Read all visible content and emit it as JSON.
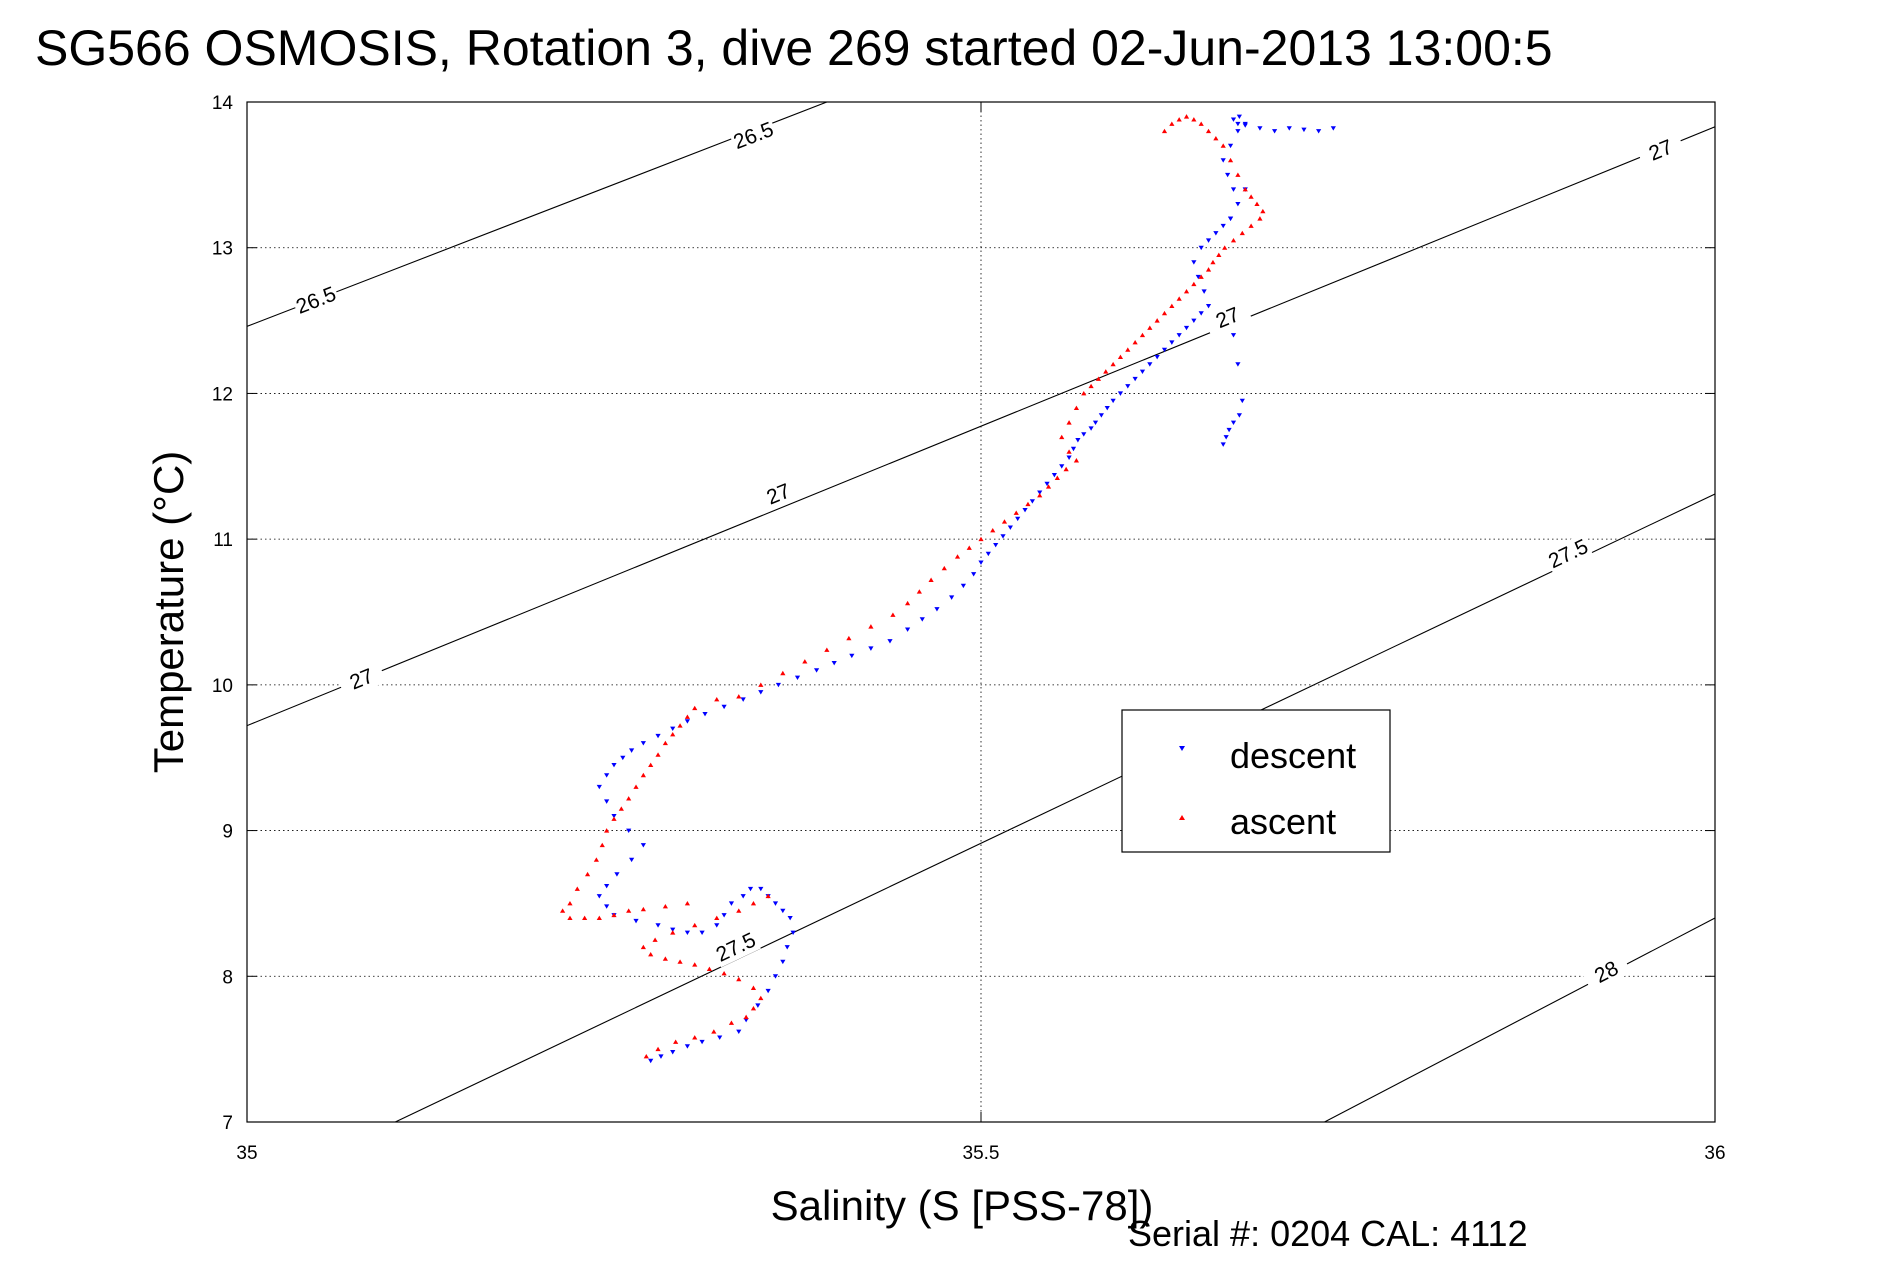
{
  "chart_data": {
    "type": "scatter",
    "title": "SG566 OSMOSIS, Rotation 3, dive 269 started 02-Jun-2013 13:00:5",
    "xlabel": "Salinity (S [PSS-78])",
    "ylabel": "Temperature (°C)",
    "xlim": [
      35,
      36
    ],
    "ylim": [
      7,
      14
    ],
    "x_ticks": [
      {
        "value": 35,
        "label": "35"
      },
      {
        "value": 35.5,
        "label": "35.5"
      },
      {
        "value": 36,
        "label": "36"
      }
    ],
    "y_ticks": [
      {
        "value": 7,
        "label": "7"
      },
      {
        "value": 8,
        "label": "8"
      },
      {
        "value": 9,
        "label": "9"
      },
      {
        "value": 10,
        "label": "10"
      },
      {
        "value": 11,
        "label": "11"
      },
      {
        "value": 12,
        "label": "12"
      },
      {
        "value": 13,
        "label": "13"
      },
      {
        "value": 14,
        "label": "14"
      }
    ],
    "grid": true,
    "legend": {
      "placement": "center-right"
    },
    "colors": {
      "descent": "#0000ff",
      "ascent": "#ff0000",
      "contour": "#000000"
    },
    "density_contours": [
      {
        "label": "26.5",
        "points": [
          [
            35,
            12.46
          ],
          [
            35.395,
            14
          ]
        ],
        "label_positions": [
          [
            35.047,
            12.64
          ],
          [
            35.345,
            13.77
          ]
        ]
      },
      {
        "label": "27",
        "points": [
          [
            35,
            9.72
          ],
          [
            36,
            13.83
          ]
        ],
        "label_positions": [
          [
            35.078,
            10.04
          ],
          [
            35.362,
            11.31
          ],
          [
            35.668,
            12.52
          ],
          [
            35.963,
            13.67
          ]
        ]
      },
      {
        "label": "27.5",
        "points": [
          [
            35.101,
            7
          ],
          [
            36,
            11.31
          ]
        ],
        "label_positions": [
          [
            35.333,
            8.2
          ],
          [
            35.9,
            10.9
          ]
        ]
      },
      {
        "label": "28",
        "points": [
          [
            35.734,
            7
          ],
          [
            36,
            8.4
          ]
        ],
        "label_positions": [
          [
            35.926,
            8.03
          ]
        ]
      }
    ],
    "series": [
      {
        "name": "descent",
        "marker": "triangle-down",
        "x": [
          35.275,
          35.282,
          35.29,
          35.3,
          35.31,
          35.322,
          35.335,
          35.34,
          35.348,
          35.355,
          35.36,
          35.365,
          35.368,
          35.372,
          35.37,
          35.365,
          35.36,
          35.355,
          35.35,
          35.343,
          35.338,
          35.33,
          35.325,
          35.32,
          35.31,
          35.3,
          35.29,
          35.28,
          35.265,
          35.25,
          35.245,
          35.24,
          35.245,
          35.252,
          35.262,
          35.27,
          35.26,
          35.25,
          35.245,
          35.24,
          35.245,
          35.25,
          35.256,
          35.262,
          35.27,
          35.28,
          35.29,
          35.3,
          35.312,
          35.325,
          35.338,
          35.35,
          35.362,
          35.375,
          35.388,
          35.4,
          35.412,
          35.425,
          35.438,
          35.45,
          35.46,
          35.47,
          35.48,
          35.488,
          35.495,
          35.5,
          35.505,
          35.51,
          35.515,
          35.52,
          35.525,
          35.53,
          35.535,
          35.54,
          35.545,
          35.55,
          35.555,
          35.56,
          35.563,
          35.566,
          35.57,
          35.575,
          35.578,
          35.582,
          35.586,
          35.59,
          35.595,
          35.6,
          35.605,
          35.61,
          35.615,
          35.62,
          35.625,
          35.63,
          35.635,
          35.64,
          35.645,
          35.65,
          35.655,
          35.652,
          35.648,
          35.645,
          35.65,
          35.655,
          35.66,
          35.665,
          35.67,
          35.675,
          35.672,
          35.668,
          35.665,
          35.67,
          35.675,
          35.68,
          35.676,
          35.672,
          35.675,
          35.68,
          35.69,
          35.7,
          35.71,
          35.72,
          35.73,
          35.74,
          35.68,
          35.67,
          35.672,
          35.675,
          35.678,
          35.676,
          35.672,
          35.669,
          35.667,
          35.665
        ],
        "y": [
          7.42,
          7.45,
          7.48,
          7.52,
          7.55,
          7.58,
          7.62,
          7.7,
          7.8,
          7.9,
          8.0,
          8.1,
          8.2,
          8.3,
          8.4,
          8.45,
          8.5,
          8.55,
          8.6,
          8.6,
          8.55,
          8.5,
          8.42,
          8.35,
          8.3,
          8.3,
          8.32,
          8.35,
          8.38,
          8.42,
          8.48,
          8.55,
          8.62,
          8.7,
          8.8,
          8.9,
          9.0,
          9.1,
          9.2,
          9.3,
          9.38,
          9.45,
          9.5,
          9.55,
          9.6,
          9.65,
          9.7,
          9.75,
          9.8,
          9.85,
          9.9,
          9.95,
          10.0,
          10.05,
          10.1,
          10.15,
          10.2,
          10.25,
          10.3,
          10.38,
          10.45,
          10.52,
          10.6,
          10.68,
          10.76,
          10.84,
          10.9,
          10.96,
          11.02,
          11.08,
          11.14,
          11.2,
          11.26,
          11.32,
          11.38,
          11.44,
          11.5,
          11.56,
          11.62,
          11.68,
          11.72,
          11.76,
          11.8,
          11.85,
          11.9,
          11.95,
          12.0,
          12.05,
          12.1,
          12.15,
          12.2,
          12.25,
          12.3,
          12.35,
          12.4,
          12.45,
          12.5,
          12.55,
          12.6,
          12.7,
          12.8,
          12.9,
          13.0,
          13.05,
          13.1,
          13.15,
          13.2,
          13.3,
          13.4,
          13.5,
          13.6,
          13.7,
          13.8,
          13.85,
          13.9,
          13.88,
          13.85,
          13.84,
          13.82,
          13.8,
          13.82,
          13.81,
          13.8,
          13.82,
          13.4,
          13.2,
          12.4,
          12.2,
          11.95,
          11.85,
          11.8,
          11.75,
          11.7,
          11.65
        ]
      },
      {
        "name": "ascent",
        "marker": "triangle-up",
        "x": [
          35.272,
          35.28,
          35.292,
          35.305,
          35.318,
          35.33,
          35.34,
          35.345,
          35.35,
          35.345,
          35.335,
          35.325,
          35.315,
          35.305,
          35.295,
          35.285,
          35.275,
          35.27,
          35.278,
          35.29,
          35.305,
          35.32,
          35.335,
          35.345,
          35.355,
          35.3,
          35.285,
          35.27,
          35.26,
          35.25,
          35.24,
          35.23,
          35.22,
          35.215,
          35.22,
          35.225,
          35.232,
          35.238,
          35.242,
          35.245,
          35.25,
          35.255,
          35.26,
          35.265,
          35.27,
          35.275,
          35.28,
          35.285,
          35.29,
          35.295,
          35.3,
          35.305,
          35.32,
          35.335,
          35.35,
          35.365,
          35.38,
          35.395,
          35.41,
          35.425,
          35.44,
          35.45,
          35.458,
          35.466,
          35.475,
          35.484,
          35.492,
          35.5,
          35.508,
          35.516,
          35.524,
          35.532,
          35.54,
          35.546,
          35.552,
          35.558,
          35.565,
          35.56,
          35.555,
          35.56,
          35.565,
          35.57,
          35.575,
          35.58,
          35.585,
          35.59,
          35.595,
          35.6,
          35.605,
          35.61,
          35.615,
          35.62,
          35.625,
          35.63,
          35.635,
          35.64,
          35.645,
          35.65,
          35.655,
          35.658,
          35.662,
          35.666,
          35.672,
          35.678,
          35.684,
          35.69,
          35.692,
          35.688,
          35.684,
          35.68,
          35.675,
          35.67,
          35.665,
          35.66,
          35.655,
          35.65,
          35.645,
          35.64,
          35.635,
          35.63,
          35.625
        ],
        "y": [
          7.45,
          7.5,
          7.55,
          7.58,
          7.62,
          7.68,
          7.72,
          7.78,
          7.85,
          7.92,
          7.98,
          8.02,
          8.05,
          8.08,
          8.1,
          8.12,
          8.15,
          8.2,
          8.25,
          8.3,
          8.35,
          8.4,
          8.45,
          8.5,
          8.55,
          8.5,
          8.48,
          8.46,
          8.45,
          8.42,
          8.4,
          8.4,
          8.4,
          8.45,
          8.5,
          8.6,
          8.7,
          8.8,
          8.9,
          9.0,
          9.08,
          9.15,
          9.22,
          9.3,
          9.38,
          9.45,
          9.52,
          9.6,
          9.66,
          9.72,
          9.78,
          9.84,
          9.9,
          9.92,
          10.0,
          10.08,
          10.16,
          10.24,
          10.32,
          10.4,
          10.48,
          10.56,
          10.64,
          10.72,
          10.8,
          10.88,
          10.94,
          11.0,
          11.06,
          11.12,
          11.18,
          11.24,
          11.3,
          11.36,
          11.42,
          11.48,
          11.54,
          11.6,
          11.7,
          11.8,
          11.9,
          12.0,
          12.05,
          12.1,
          12.15,
          12.2,
          12.25,
          12.3,
          12.35,
          12.4,
          12.45,
          12.5,
          12.55,
          12.6,
          12.65,
          12.7,
          12.75,
          12.8,
          12.85,
          12.9,
          12.95,
          13.0,
          13.05,
          13.1,
          13.15,
          13.2,
          13.25,
          13.3,
          13.35,
          13.4,
          13.5,
          13.6,
          13.7,
          13.75,
          13.8,
          13.85,
          13.88,
          13.9,
          13.88,
          13.85,
          13.8
        ]
      }
    ],
    "legend_entries": [
      "descent",
      "ascent"
    ]
  },
  "footer": {
    "serial": "Serial #: 0204  CAL: 4112"
  }
}
